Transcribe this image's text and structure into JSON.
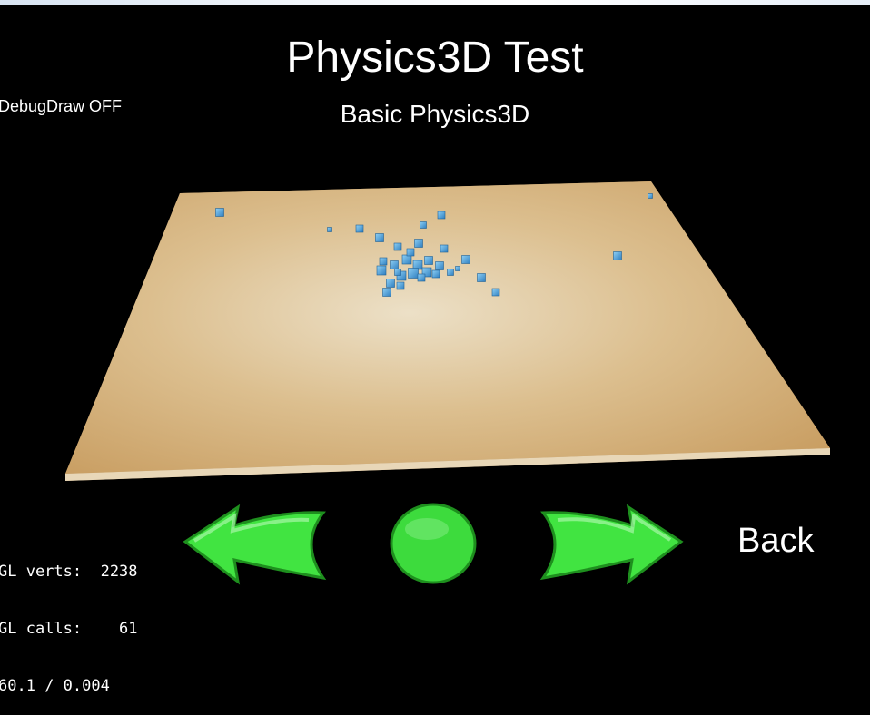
{
  "window": {
    "title": "Physics3D Test",
    "subtitle": "Basic Physics3D"
  },
  "controls": {
    "debug_draw_label": "DebugDraw OFF",
    "back_label": "Back",
    "prev_icon": "left-arrow-icon",
    "restart_icon": "circle-icon",
    "next_icon": "right-arrow-icon"
  },
  "stats": {
    "line1": "GL verts:  2238",
    "line2": "GL calls:    61",
    "line3": "60.1 / 0.004"
  },
  "colors": {
    "background": "#000000",
    "text": "#ffffff",
    "ground": "#d8b17a",
    "box": "#4aa6e0",
    "button_green": "#3ddb3d"
  }
}
